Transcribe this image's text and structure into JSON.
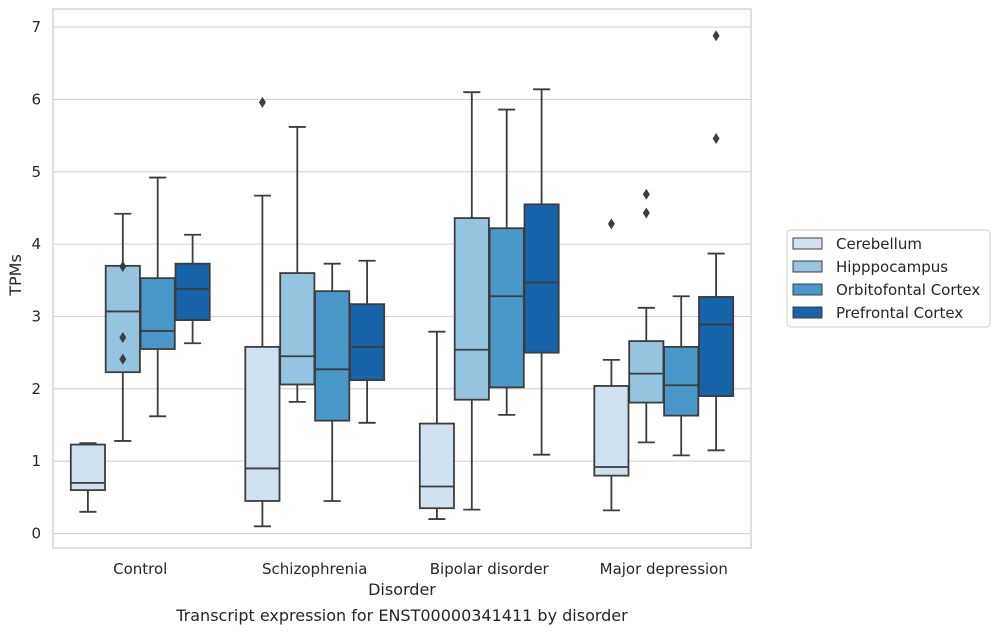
{
  "caption": "Transcript expression for ENST00000341411 by disorder",
  "chart_data": {
    "type": "boxplot",
    "xlabel": "Disorder",
    "ylabel": "TPMs",
    "ylim": [
      -0.2,
      7.25
    ],
    "yticks": [
      0,
      1,
      2,
      3,
      4,
      5,
      6,
      7
    ],
    "grid": "horizontal",
    "legend_position": "right",
    "categories": [
      "Control",
      "Schizophrenia",
      "Bipolar disorder",
      "Major depression"
    ],
    "series": [
      {
        "name": "Cerebellum",
        "color": "#d0e1f2",
        "boxes": [
          {
            "whislo": 0.3,
            "q1": 0.6,
            "med": 0.7,
            "q3": 1.23,
            "whishi": 1.25,
            "fliers": []
          },
          {
            "whislo": 0.1,
            "q1": 0.45,
            "med": 0.9,
            "q3": 2.58,
            "whishi": 4.67,
            "fliers": [
              5.96
            ]
          },
          {
            "whislo": 0.2,
            "q1": 0.35,
            "med": 0.65,
            "q3": 1.52,
            "whishi": 2.79,
            "fliers": []
          },
          {
            "whislo": 0.32,
            "q1": 0.8,
            "med": 0.92,
            "q3": 2.04,
            "whishi": 2.4,
            "fliers": [
              4.28
            ]
          }
        ]
      },
      {
        "name": "Hipppocampus",
        "color": "#94c4df",
        "boxes": [
          {
            "whislo": 1.28,
            "q1": 2.23,
            "med": 3.07,
            "q3": 3.7,
            "whishi": 4.42,
            "fliers": [
              3.69,
              2.71,
              2.41
            ]
          },
          {
            "whislo": 1.82,
            "q1": 2.06,
            "med": 2.45,
            "q3": 3.6,
            "whishi": 5.62,
            "fliers": []
          },
          {
            "whislo": 0.33,
            "q1": 1.85,
            "med": 2.54,
            "q3": 4.36,
            "whishi": 6.1,
            "fliers": []
          },
          {
            "whislo": 1.26,
            "q1": 1.81,
            "med": 2.21,
            "q3": 2.66,
            "whishi": 3.12,
            "fliers": [
              4.69,
              4.43
            ]
          }
        ]
      },
      {
        "name": "Orbitofontal Cortex",
        "color": "#4a98c9",
        "boxes": [
          {
            "whislo": 1.62,
            "q1": 2.55,
            "med": 2.8,
            "q3": 3.53,
            "whishi": 4.92,
            "fliers": []
          },
          {
            "whislo": 0.45,
            "q1": 1.56,
            "med": 2.27,
            "q3": 3.35,
            "whishi": 3.73,
            "fliers": []
          },
          {
            "whislo": 1.64,
            "q1": 2.02,
            "med": 3.28,
            "q3": 4.22,
            "whishi": 5.86,
            "fliers": []
          },
          {
            "whislo": 1.08,
            "q1": 1.63,
            "med": 2.05,
            "q3": 2.58,
            "whishi": 3.28,
            "fliers": []
          }
        ]
      },
      {
        "name": "Prefrontal Cortex",
        "color": "#1764ab",
        "boxes": [
          {
            "whislo": 2.63,
            "q1": 2.95,
            "med": 3.38,
            "q3": 3.73,
            "whishi": 4.13,
            "fliers": []
          },
          {
            "whislo": 1.53,
            "q1": 2.12,
            "med": 2.58,
            "q3": 3.17,
            "whishi": 3.77,
            "fliers": []
          },
          {
            "whislo": 1.09,
            "q1": 2.5,
            "med": 3.47,
            "q3": 4.55,
            "whishi": 6.14,
            "fliers": []
          },
          {
            "whislo": 1.15,
            "q1": 1.9,
            "med": 2.89,
            "q3": 3.27,
            "whishi": 3.87,
            "fliers": [
              6.88,
              5.46
            ]
          }
        ]
      }
    ]
  }
}
